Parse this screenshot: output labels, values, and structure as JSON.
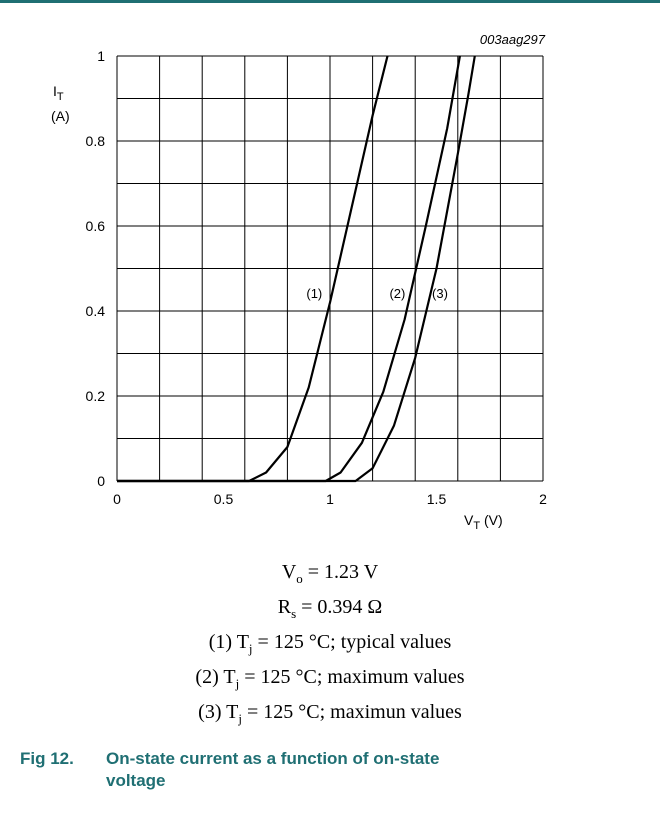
{
  "chart_data": {
    "type": "line",
    "code": "003aag297",
    "ylabel": {
      "symbol": "I",
      "sub": "T",
      "unit": "(A)"
    },
    "xlabel": {
      "symbol": "V",
      "sub": "T",
      "unit": "(V)"
    },
    "xlim": [
      0,
      2
    ],
    "ylim": [
      0,
      1
    ],
    "x_ticks": [
      "0",
      "0.5",
      "1",
      "1.5",
      "2"
    ],
    "y_ticks": [
      "0",
      "0.2",
      "0.4",
      "0.6",
      "0.8",
      "1"
    ],
    "grid": true,
    "series": [
      {
        "label": "(1)",
        "points": [
          [
            0,
            0
          ],
          [
            0.62,
            0
          ],
          [
            0.7,
            0.02
          ],
          [
            0.8,
            0.08
          ],
          [
            0.9,
            0.22
          ],
          [
            1.0,
            0.42
          ],
          [
            1.1,
            0.64
          ],
          [
            1.2,
            0.86
          ],
          [
            1.27,
            1.0
          ]
        ]
      },
      {
        "label": "(2)",
        "points": [
          [
            0,
            0
          ],
          [
            0.98,
            0
          ],
          [
            1.05,
            0.02
          ],
          [
            1.15,
            0.09
          ],
          [
            1.25,
            0.21
          ],
          [
            1.35,
            0.38
          ],
          [
            1.45,
            0.6
          ],
          [
            1.55,
            0.83
          ],
          [
            1.61,
            1.0
          ]
        ]
      },
      {
        "label": "(3)",
        "points": [
          [
            0,
            0
          ],
          [
            1.12,
            0
          ],
          [
            1.2,
            0.03
          ],
          [
            1.3,
            0.13
          ],
          [
            1.4,
            0.29
          ],
          [
            1.5,
            0.5
          ],
          [
            1.6,
            0.77
          ],
          [
            1.65,
            0.91
          ],
          [
            1.68,
            1.0
          ]
        ]
      }
    ]
  },
  "conditions": {
    "vo": {
      "symbol": "V",
      "sub": "o",
      "value": " = 1.23 V"
    },
    "rs": {
      "symbol": "R",
      "sub": "s",
      "value": " = 0.394 Ω"
    },
    "lines": [
      {
        "prefix": "(1) T",
        "sub": "j",
        "rest": " = 125 °C; typical values"
      },
      {
        "prefix": "(2) T",
        "sub": "j",
        "rest": " = 125 °C; maximum values"
      },
      {
        "prefix": "(3) T",
        "sub": "j",
        "rest": " = 125 °C; maximun values"
      }
    ]
  },
  "caption": {
    "fig": "Fig 12.",
    "title_line1": "On-state current as a function of on-state",
    "title_line2": "voltage"
  },
  "colors": {
    "accent": "#1f6f73",
    "grid": "#000000",
    "curve": "#000000"
  }
}
